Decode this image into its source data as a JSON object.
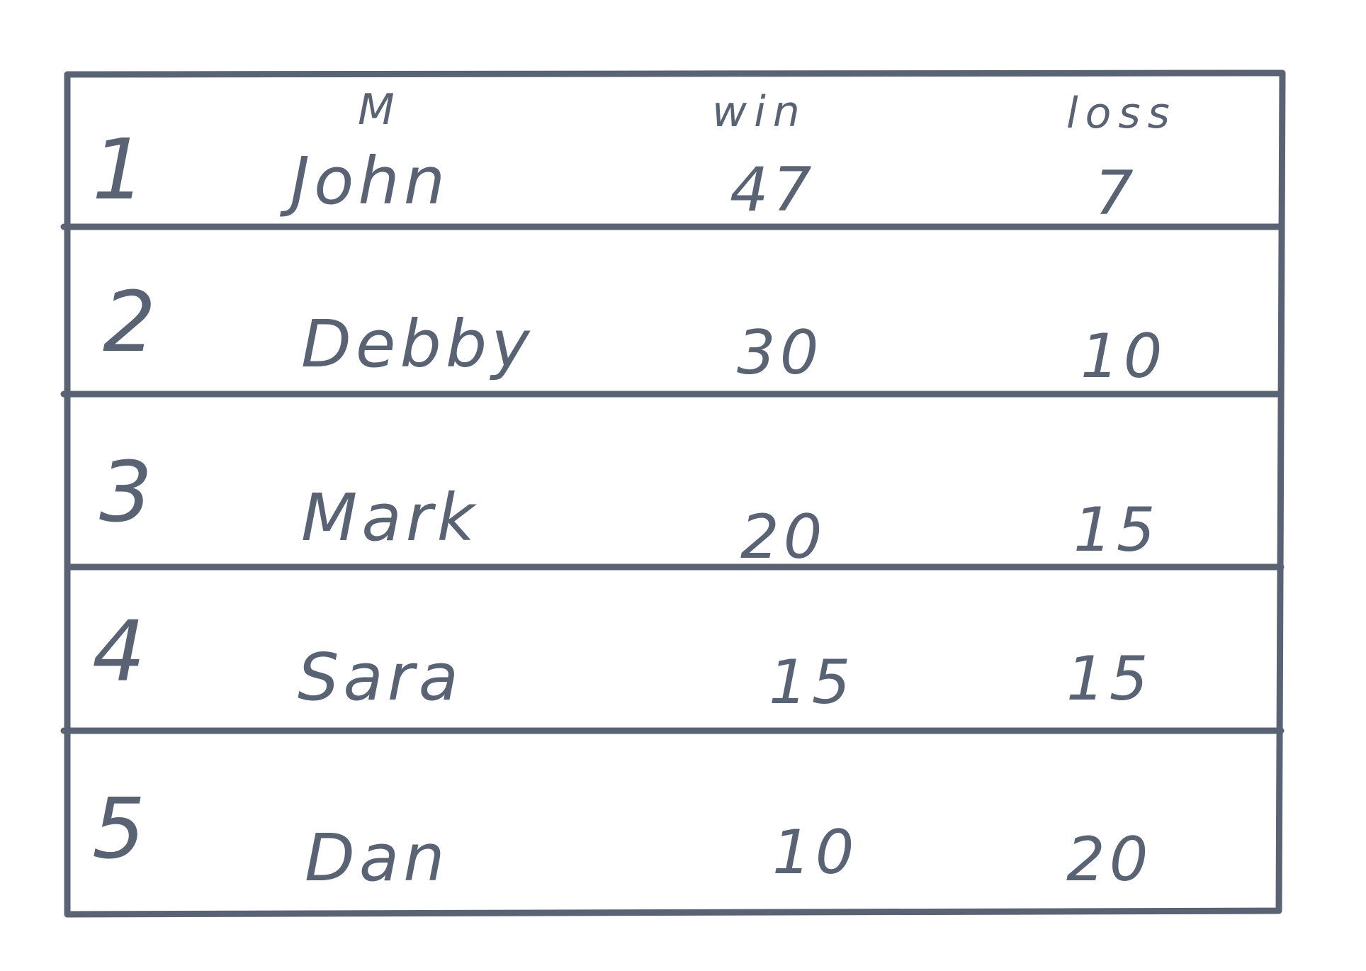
{
  "table": {
    "headers": {
      "name": "M",
      "win": "win",
      "loss": "loss"
    },
    "rows": [
      {
        "rank": "1",
        "name": "John",
        "win": "47",
        "loss": "7"
      },
      {
        "rank": "2",
        "name": "Debby",
        "win": "30",
        "loss": "10"
      },
      {
        "rank": "3",
        "name": "Mark",
        "win": "20",
        "loss": "15"
      },
      {
        "rank": "4",
        "name": "Sara",
        "win": "15",
        "loss": "15"
      },
      {
        "rank": "5",
        "name": "Dan",
        "win": "10",
        "loss": "20"
      }
    ]
  },
  "ink_color": "#5a6374"
}
